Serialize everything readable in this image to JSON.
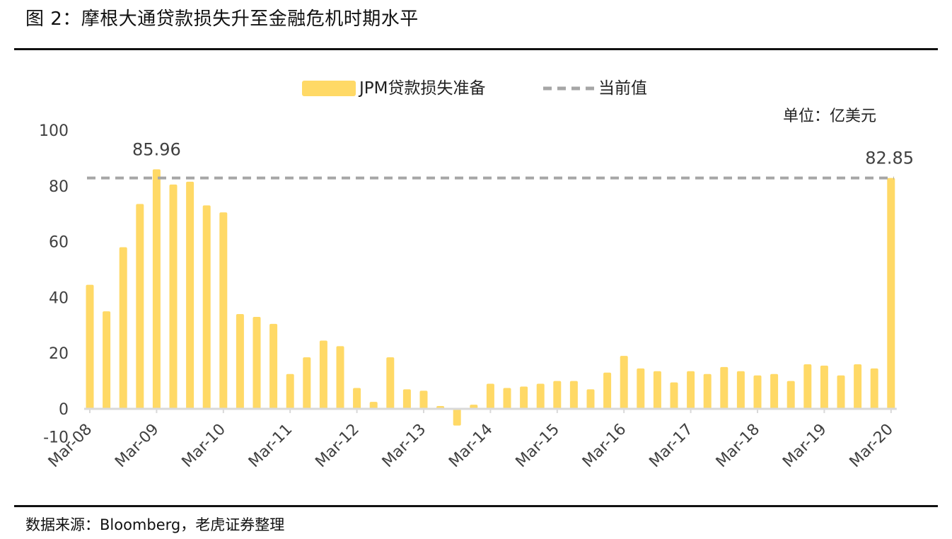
{
  "figure": {
    "title": "图 2：摩根大通贷款损失升至金融危机时期水平",
    "source": "数据来源：Bloomberg，老虎证券整理",
    "unit_label": "单位：亿美元"
  },
  "legend": {
    "bar_label": "JPM贷款损失准备",
    "line_label": "当前值"
  },
  "colors": {
    "bar": "#FFD966",
    "reference_line": "#A6A6A6",
    "axis": "#D9D9D9",
    "text": "#404040"
  },
  "chart_data": {
    "type": "bar",
    "ylim": [
      -10,
      100
    ],
    "y_ticks": [
      "-10",
      "0",
      "20",
      "40",
      "60",
      "80",
      "100"
    ],
    "y_tick_values": [
      -10,
      0,
      20,
      40,
      60,
      80,
      100
    ],
    "x_tick_labels": [
      "Mar-08",
      "Mar-09",
      "Mar-10",
      "Mar-11",
      "Mar-12",
      "Mar-13",
      "Mar-14",
      "Mar-15",
      "Mar-16",
      "Mar-17",
      "Mar-18",
      "Mar-19",
      "Mar-20"
    ],
    "x_tick_every": 4,
    "series": [
      {
        "name": "JPM贷款损失准备",
        "values": [
          44.5,
          35.0,
          58.0,
          73.5,
          85.96,
          80.5,
          81.5,
          73.0,
          70.5,
          34.0,
          33.0,
          30.5,
          12.5,
          18.5,
          24.5,
          22.5,
          7.5,
          2.5,
          18.5,
          7.0,
          6.5,
          1.0,
          -6.0,
          1.5,
          9.0,
          7.5,
          8.0,
          9.0,
          10.0,
          10.0,
          7.0,
          13.0,
          19.0,
          14.5,
          13.5,
          9.5,
          13.5,
          12.5,
          15.0,
          13.5,
          12.0,
          12.5,
          10.0,
          16.0,
          15.5,
          12.0,
          16.0,
          14.5,
          82.85
        ]
      }
    ],
    "reference_line": {
      "name": "当前值",
      "value": 82.85
    },
    "annotations": [
      {
        "text": "85.96",
        "index": 4,
        "value": 85.96
      },
      {
        "text": "82.85",
        "index": 48,
        "value": 82.85
      }
    ]
  }
}
